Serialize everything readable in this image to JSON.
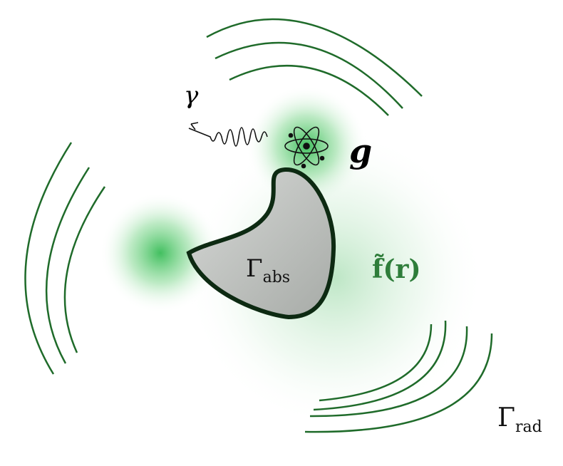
{
  "labels": {
    "photon": "γ",
    "coupling": "g",
    "absorber": {
      "symbol": "Γ",
      "subscript": "abs"
    },
    "field": "f̃(r)",
    "radiative": {
      "symbol": "Γ",
      "subscript": "rad"
    }
  }
}
